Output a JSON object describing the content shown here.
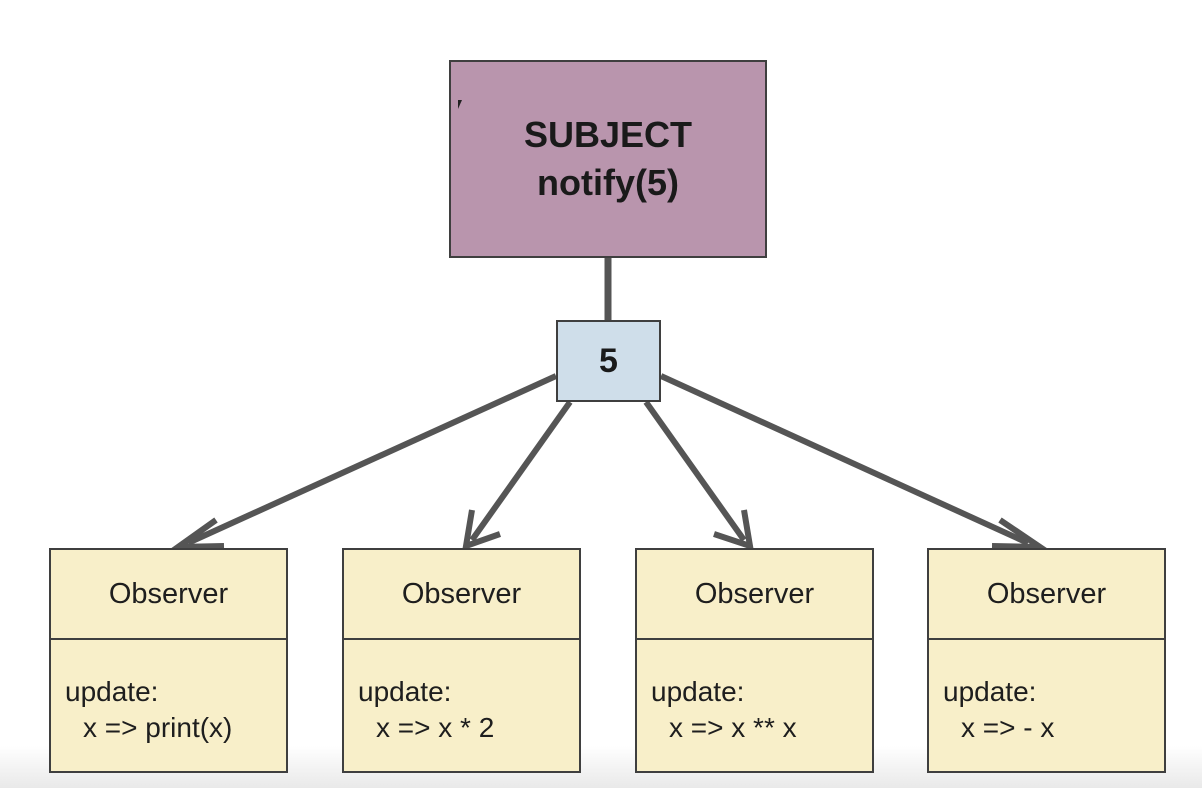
{
  "subject": {
    "title": "SUBJECT",
    "call": "notify(5)"
  },
  "value": "5",
  "observers": [
    {
      "title": "Observer",
      "update_label": "update:",
      "fn": "x => print(x)"
    },
    {
      "title": "Observer",
      "update_label": "update:",
      "fn": "x => x * 2"
    },
    {
      "title": "Observer",
      "update_label": "update:",
      "fn": "x => x ** x"
    },
    {
      "title": "Observer",
      "update_label": "update:",
      "fn": "x => - x"
    }
  ],
  "colors": {
    "subject_fill": "#b995ad",
    "value_fill": "#cfdeea",
    "observer_fill": "#f8efc9",
    "line": "#555555"
  }
}
